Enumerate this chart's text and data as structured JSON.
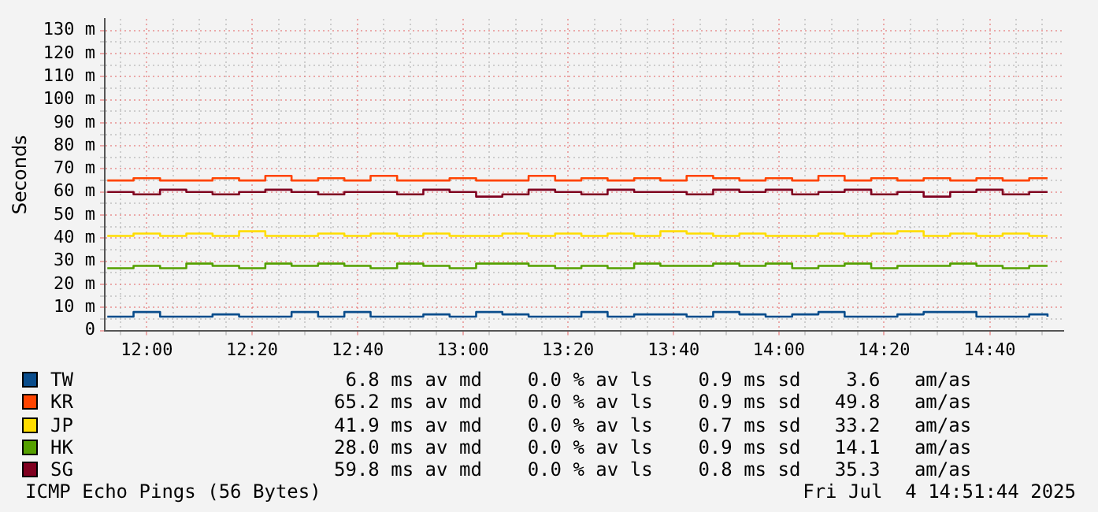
{
  "chart_data": {
    "type": "step",
    "ylabel": "Seconds",
    "legend": "bottom",
    "grid": true,
    "marker": "none",
    "line_style": "solid",
    "x": [
      11.875,
      11.958,
      12.042,
      12.125,
      12.208,
      12.292,
      12.375,
      12.458,
      12.542,
      12.625,
      12.708,
      12.792,
      12.875,
      12.958,
      13.042,
      13.125,
      13.208,
      13.292,
      13.375,
      13.458,
      13.542,
      13.625,
      13.708,
      13.792,
      13.875,
      13.958,
      14.042,
      14.125,
      14.208,
      14.292,
      14.375,
      14.458,
      14.542,
      14.625,
      14.708,
      14.792,
      14.85
    ],
    "series": [
      {
        "name": "TW",
        "color": "#0a4d8c",
        "values": [
          6,
          8,
          6,
          6,
          7,
          6,
          6,
          8,
          6,
          8,
          6,
          6,
          7,
          6,
          8,
          7,
          6,
          6,
          8,
          6,
          7,
          7,
          6,
          8,
          7,
          6,
          7,
          8,
          6,
          6,
          7,
          8,
          8,
          6,
          6,
          7,
          6
        ]
      },
      {
        "name": "KR",
        "color": "#ff4400",
        "values": [
          65,
          66,
          65,
          65,
          66,
          65,
          67,
          65,
          66,
          65,
          67,
          65,
          65,
          66,
          65,
          65,
          67,
          65,
          66,
          65,
          66,
          65,
          67,
          66,
          65,
          66,
          65,
          67,
          65,
          66,
          65,
          66,
          65,
          66,
          65,
          66,
          66
        ]
      },
      {
        "name": "JP",
        "color": "#ffdd00",
        "values": [
          41,
          42,
          41,
          42,
          41,
          43,
          41,
          41,
          42,
          41,
          42,
          41,
          42,
          41,
          41,
          42,
          41,
          42,
          41,
          42,
          41,
          43,
          42,
          41,
          42,
          41,
          41,
          42,
          41,
          42,
          43,
          41,
          42,
          41,
          42,
          41,
          41
        ]
      },
      {
        "name": "HK",
        "color": "#55a000",
        "values": [
          27,
          28,
          27,
          29,
          28,
          27,
          29,
          28,
          29,
          28,
          27,
          29,
          28,
          27,
          29,
          29,
          28,
          27,
          28,
          27,
          29,
          28,
          28,
          29,
          28,
          29,
          27,
          28,
          29,
          27,
          28,
          28,
          29,
          28,
          27,
          28,
          28
        ]
      },
      {
        "name": "SG",
        "color": "#800020",
        "values": [
          60,
          59,
          61,
          60,
          59,
          60,
          61,
          60,
          59,
          60,
          60,
          59,
          61,
          60,
          58,
          59,
          61,
          60,
          59,
          61,
          60,
          60,
          59,
          61,
          60,
          61,
          59,
          60,
          61,
          59,
          60,
          58,
          60,
          61,
          59,
          60,
          60
        ]
      }
    ],
    "xlim": [
      11.867,
      14.9
    ],
    "xticks": [
      {
        "value": 11.917,
        "label": null
      },
      {
        "value": 12,
        "label": "12:00"
      },
      {
        "value": 12.083,
        "label": null
      },
      {
        "value": 12.167,
        "label": null
      },
      {
        "value": 12.25,
        "label": null
      },
      {
        "value": 12.333,
        "label": "12:20"
      },
      {
        "value": 12.417,
        "label": null
      },
      {
        "value": 12.5,
        "label": null
      },
      {
        "value": 12.583,
        "label": null
      },
      {
        "value": 12.667,
        "label": "12:40"
      },
      {
        "value": 12.75,
        "label": null
      },
      {
        "value": 12.833,
        "label": null
      },
      {
        "value": 12.917,
        "label": null
      },
      {
        "value": 13,
        "label": "13:00"
      },
      {
        "value": 13.083,
        "label": null
      },
      {
        "value": 13.167,
        "label": null
      },
      {
        "value": 13.25,
        "label": null
      },
      {
        "value": 13.333,
        "label": "13:20"
      },
      {
        "value": 13.417,
        "label": null
      },
      {
        "value": 13.5,
        "label": null
      },
      {
        "value": 13.583,
        "label": null
      },
      {
        "value": 13.667,
        "label": "13:40"
      },
      {
        "value": 13.75,
        "label": null
      },
      {
        "value": 13.833,
        "label": null
      },
      {
        "value": 13.917,
        "label": null
      },
      {
        "value": 14,
        "label": "14:00"
      },
      {
        "value": 14.083,
        "label": null
      },
      {
        "value": 14.167,
        "label": null
      },
      {
        "value": 14.25,
        "label": null
      },
      {
        "value": 14.333,
        "label": "14:20"
      },
      {
        "value": 14.417,
        "label": null
      },
      {
        "value": 14.5,
        "label": null
      },
      {
        "value": 14.583,
        "label": null
      },
      {
        "value": 14.667,
        "label": "14:40"
      },
      {
        "value": 14.75,
        "label": null
      },
      {
        "value": 14.833,
        "label": null
      }
    ],
    "ylim": [
      0,
      135
    ],
    "yticks": [
      0,
      {
        "value": 5,
        "label": null
      },
      {
        "value": 10,
        "label": "10 m"
      },
      {
        "value": 15,
        "label": null
      },
      {
        "value": 20,
        "label": "20 m"
      },
      {
        "value": 25,
        "label": null
      },
      {
        "value": 30,
        "label": "30 m"
      },
      {
        "value": 35,
        "label": null
      },
      {
        "value": 40,
        "label": "40 m"
      },
      {
        "value": 45,
        "label": null
      },
      {
        "value": 50,
        "label": "50 m"
      },
      {
        "value": 55,
        "label": null
      },
      {
        "value": 60,
        "label": "60 m"
      },
      {
        "value": 65,
        "label": null
      },
      {
        "value": 70,
        "label": "70 m"
      },
      {
        "value": 75,
        "label": null
      },
      {
        "value": 80,
        "label": "80 m"
      },
      {
        "value": 85,
        "label": null
      },
      {
        "value": 90,
        "label": "90 m"
      },
      {
        "value": 95,
        "label": null
      },
      {
        "value": 100,
        "label": "100 m"
      },
      {
        "value": 105,
        "label": null
      },
      {
        "value": 110,
        "label": "110 m"
      },
      {
        "value": 115,
        "label": null
      },
      {
        "value": 120,
        "label": "120 m"
      },
      {
        "value": 125,
        "label": null
      },
      {
        "value": 130,
        "label": "130 m"
      }
    ],
    "annotations": [
      "6.8 ms av md    0.0 % av ls    0.9 ms sd    3.6   am/as",
      "65.2 ms av md    0.0 % av ls    0.9 ms sd   49.8   am/as",
      "41.9 ms av md    0.0 % av ls    0.7 ms sd   33.2   am/as",
      "28.0 ms av md    0.0 % av ls    0.9 ms sd   14.1   am/as",
      "59.8 ms av md    0.0 % av ls    0.8 ms sd   35.3   am/as",
      "ICMP Echo Pings (56 Bytes)",
      "Fri Jul  4 14:51:44 2025"
    ]
  }
}
